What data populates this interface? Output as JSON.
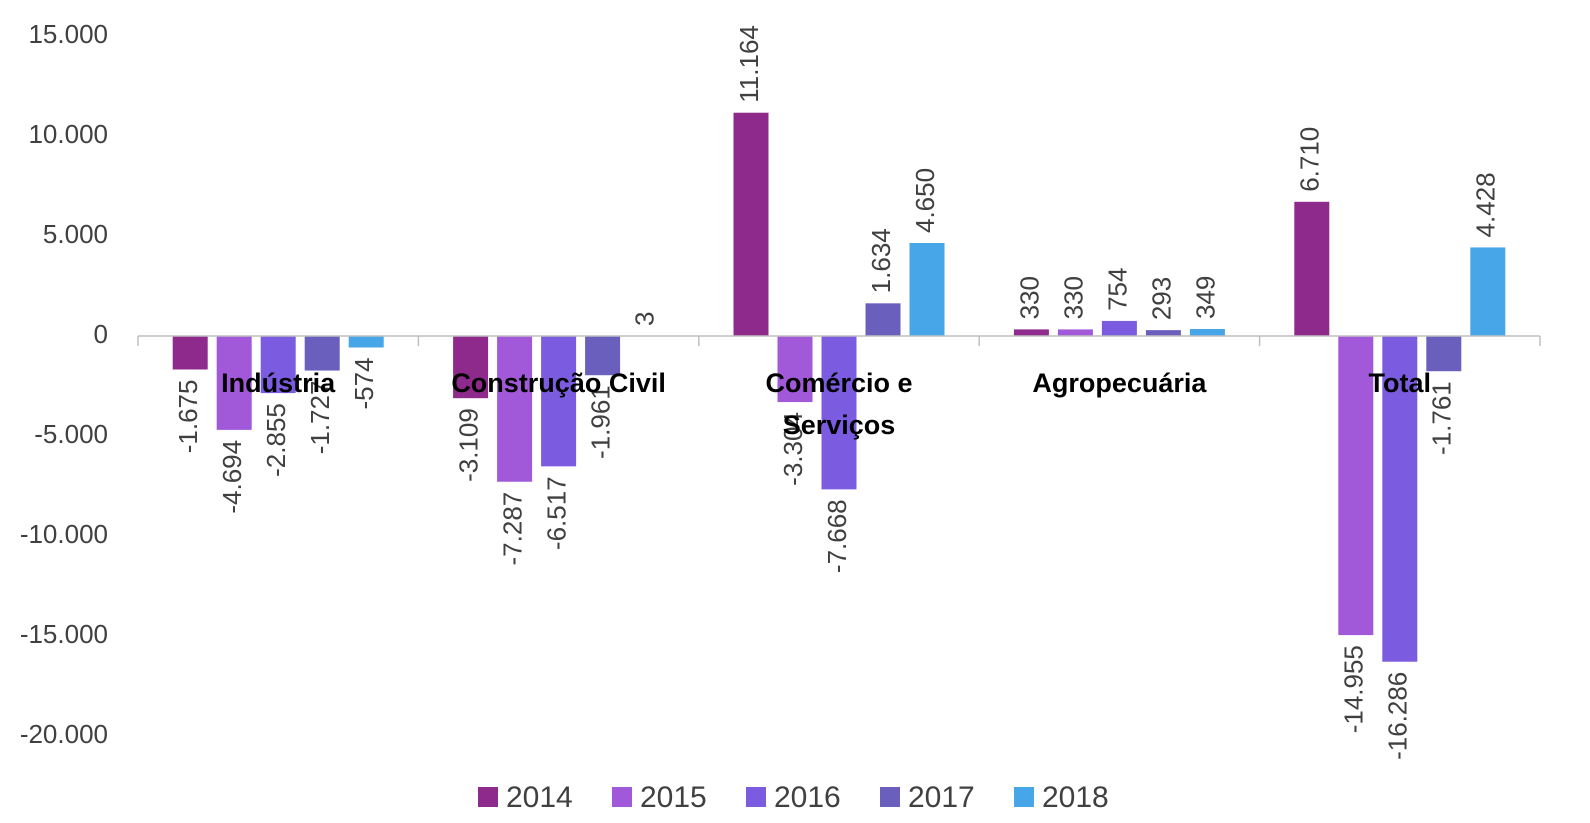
{
  "chart_data": {
    "type": "bar",
    "categories": [
      "Indústria",
      "Construção Civil",
      "Comércio e Serviços",
      "Agropecuária",
      "Total"
    ],
    "series": [
      {
        "name": "2014",
        "color": "#8e2a8b",
        "values": [
          -1675,
          -3109,
          11164,
          330,
          6710
        ],
        "value_labels": [
          "-1.675",
          "-3.109",
          "11.164",
          "330",
          "6.710"
        ]
      },
      {
        "name": "2015",
        "color": "#a259d9",
        "values": [
          -4694,
          -7287,
          -3304,
          330,
          -14955
        ],
        "value_labels": [
          "-4.694",
          "-7.287",
          "-3.304",
          "330",
          "-14.955"
        ]
      },
      {
        "name": "2016",
        "color": "#7b5ce0",
        "values": [
          -2855,
          -6517,
          -7668,
          754,
          -16286
        ],
        "value_labels": [
          "-2.855",
          "-6.517",
          "-7.668",
          "754",
          "-16.286"
        ]
      },
      {
        "name": "2017",
        "color": "#6a5fbd",
        "values": [
          -1727,
          -1961,
          1634,
          293,
          -1761
        ],
        "value_labels": [
          "-1.727",
          "-1.961",
          "1.634",
          "293",
          "-1.761"
        ]
      },
      {
        "name": "2018",
        "color": "#47a6e8",
        "values": [
          -574,
          3,
          4650,
          349,
          4428
        ],
        "value_labels": [
          "-574",
          "3",
          "4.650",
          "349",
          "4.428"
        ]
      }
    ],
    "ylim": [
      -21000,
      16500
    ],
    "yticks": [
      {
        "value": 15000,
        "label": "15.000"
      },
      {
        "value": 10000,
        "label": "10.000"
      },
      {
        "value": 5000,
        "label": "5.000"
      },
      0,
      {
        "value": -5000,
        "label": "-5.000"
      },
      {
        "value": -10000,
        "label": "-10.000"
      },
      {
        "value": -15000,
        "label": "-15.000"
      },
      {
        "value": -20000,
        "label": "-20.000"
      }
    ],
    "grid": false,
    "legend": "bottom"
  }
}
